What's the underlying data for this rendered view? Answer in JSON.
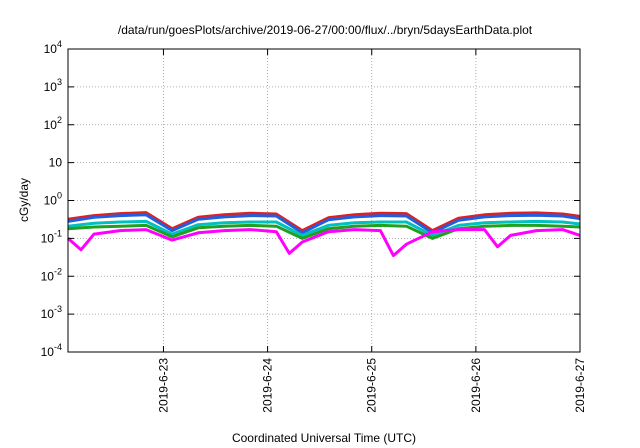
{
  "chart_data": {
    "type": "line",
    "title": "/data/run/goesPlots/archive/2019-06-27/00:00/flux/../bryn/5daysEarthData.plot",
    "xlabel": "Coordinated Universal Time (UTC)",
    "ylabel": "cGy/day",
    "y_scale": "log",
    "ylim": [
      0.0001,
      10000
    ],
    "xlim": [
      "2019-06-22T02:00",
      "2019-06-27T00:00"
    ],
    "y_ticks": [
      {
        "value": 0.0001,
        "base": "10",
        "exp": "-4"
      },
      {
        "value": 0.001,
        "base": "10",
        "exp": "-3"
      },
      {
        "value": 0.01,
        "base": "10",
        "exp": "-2"
      },
      {
        "value": 0.1,
        "base": "10",
        "exp": "-1"
      },
      {
        "value": 1,
        "base": "10",
        "exp": "0"
      },
      {
        "value": 10,
        "base": "10",
        "exp": ""
      },
      {
        "value": 100,
        "base": "10",
        "exp": "2"
      },
      {
        "value": 1000,
        "base": "10",
        "exp": "3"
      },
      {
        "value": 10000,
        "base": "10",
        "exp": "4"
      }
    ],
    "x_ticks": [
      {
        "value": "2019-06-23T00:00",
        "label": "2019-6-23"
      },
      {
        "value": "2019-06-24T00:00",
        "label": "2019-6-24"
      },
      {
        "value": "2019-06-25T00:00",
        "label": "2019-6-25"
      },
      {
        "value": "2019-06-26T00:00",
        "label": "2019-6-26"
      },
      {
        "value": "2019-06-27T00:00",
        "label": "2019-6-27"
      }
    ],
    "grid": true,
    "series": [
      {
        "color": "#e02020",
        "times": [
          "2019-06-22T02:00",
          "2019-06-22T08:00",
          "2019-06-22T14:00",
          "2019-06-22T20:00",
          "2019-06-23T02:00",
          "2019-06-23T08:00",
          "2019-06-23T14:00",
          "2019-06-23T20:00",
          "2019-06-24T02:00",
          "2019-06-24T08:00",
          "2019-06-24T14:00",
          "2019-06-24T20:00",
          "2019-06-25T02:00",
          "2019-06-25T08:00",
          "2019-06-25T14:00",
          "2019-06-25T20:00",
          "2019-06-26T02:00",
          "2019-06-26T08:00",
          "2019-06-26T14:00",
          "2019-06-26T20:00",
          "2019-06-27T00:00"
        ],
        "values": [
          0.32,
          0.4,
          0.45,
          0.48,
          0.18,
          0.36,
          0.42,
          0.46,
          0.44,
          0.16,
          0.35,
          0.42,
          0.46,
          0.45,
          0.16,
          0.34,
          0.42,
          0.46,
          0.47,
          0.44,
          0.38
        ]
      },
      {
        "color": "#2060e0",
        "times": [
          "2019-06-22T02:00",
          "2019-06-22T08:00",
          "2019-06-22T14:00",
          "2019-06-22T20:00",
          "2019-06-23T02:00",
          "2019-06-23T08:00",
          "2019-06-23T14:00",
          "2019-06-23T20:00",
          "2019-06-24T02:00",
          "2019-06-24T08:00",
          "2019-06-24T14:00",
          "2019-06-24T20:00",
          "2019-06-25T02:00",
          "2019-06-25T08:00",
          "2019-06-25T14:00",
          "2019-06-25T20:00",
          "2019-06-26T02:00",
          "2019-06-26T08:00",
          "2019-06-26T14:00",
          "2019-06-26T20:00",
          "2019-06-27T00:00"
        ],
        "values": [
          0.28,
          0.36,
          0.4,
          0.42,
          0.16,
          0.32,
          0.37,
          0.4,
          0.39,
          0.14,
          0.31,
          0.37,
          0.4,
          0.39,
          0.14,
          0.3,
          0.37,
          0.4,
          0.41,
          0.39,
          0.33
        ]
      },
      {
        "color": "#00c0c0",
        "times": [
          "2019-06-22T02:00",
          "2019-06-22T08:00",
          "2019-06-22T14:00",
          "2019-06-22T20:00",
          "2019-06-23T02:00",
          "2019-06-23T08:00",
          "2019-06-23T14:00",
          "2019-06-23T20:00",
          "2019-06-24T02:00",
          "2019-06-24T08:00",
          "2019-06-24T14:00",
          "2019-06-24T20:00",
          "2019-06-25T02:00",
          "2019-06-25T08:00",
          "2019-06-25T14:00",
          "2019-06-25T20:00",
          "2019-06-26T02:00",
          "2019-06-26T08:00",
          "2019-06-26T14:00",
          "2019-06-26T20:00",
          "2019-06-27T00:00"
        ],
        "values": [
          0.21,
          0.25,
          0.27,
          0.28,
          0.13,
          0.23,
          0.26,
          0.27,
          0.27,
          0.12,
          0.22,
          0.26,
          0.27,
          0.27,
          0.12,
          0.22,
          0.26,
          0.27,
          0.28,
          0.27,
          0.24
        ]
      },
      {
        "color": "#20a020",
        "times": [
          "2019-06-22T02:00",
          "2019-06-22T08:00",
          "2019-06-22T14:00",
          "2019-06-22T20:00",
          "2019-06-23T02:00",
          "2019-06-23T08:00",
          "2019-06-23T14:00",
          "2019-06-23T20:00",
          "2019-06-24T02:00",
          "2019-06-24T08:00",
          "2019-06-24T14:00",
          "2019-06-24T20:00",
          "2019-06-25T02:00",
          "2019-06-25T08:00",
          "2019-06-25T14:00",
          "2019-06-25T20:00",
          "2019-06-26T02:00",
          "2019-06-26T08:00",
          "2019-06-26T14:00",
          "2019-06-26T20:00",
          "2019-06-27T00:00"
        ],
        "values": [
          0.18,
          0.2,
          0.21,
          0.22,
          0.11,
          0.19,
          0.21,
          0.22,
          0.21,
          0.1,
          0.18,
          0.21,
          0.22,
          0.21,
          0.1,
          0.18,
          0.21,
          0.22,
          0.22,
          0.21,
          0.2
        ]
      },
      {
        "color": "#ff00ff",
        "times": [
          "2019-06-22T02:00",
          "2019-06-22T05:00",
          "2019-06-22T08:00",
          "2019-06-22T14:00",
          "2019-06-22T20:00",
          "2019-06-23T02:00",
          "2019-06-23T08:00",
          "2019-06-23T14:00",
          "2019-06-23T20:00",
          "2019-06-24T02:00",
          "2019-06-24T05:00",
          "2019-06-24T08:00",
          "2019-06-24T14:00",
          "2019-06-24T20:00",
          "2019-06-25T02:00",
          "2019-06-25T05:00",
          "2019-06-25T08:00",
          "2019-06-25T14:00",
          "2019-06-25T20:00",
          "2019-06-26T02:00",
          "2019-06-26T05:00",
          "2019-06-26T08:00",
          "2019-06-26T14:00",
          "2019-06-26T20:00",
          "2019-06-27T00:00"
        ],
        "values": [
          0.1,
          0.05,
          0.13,
          0.16,
          0.17,
          0.09,
          0.14,
          0.16,
          0.17,
          0.15,
          0.04,
          0.08,
          0.15,
          0.17,
          0.16,
          0.035,
          0.07,
          0.15,
          0.17,
          0.17,
          0.06,
          0.12,
          0.16,
          0.17,
          0.12
        ]
      }
    ]
  }
}
